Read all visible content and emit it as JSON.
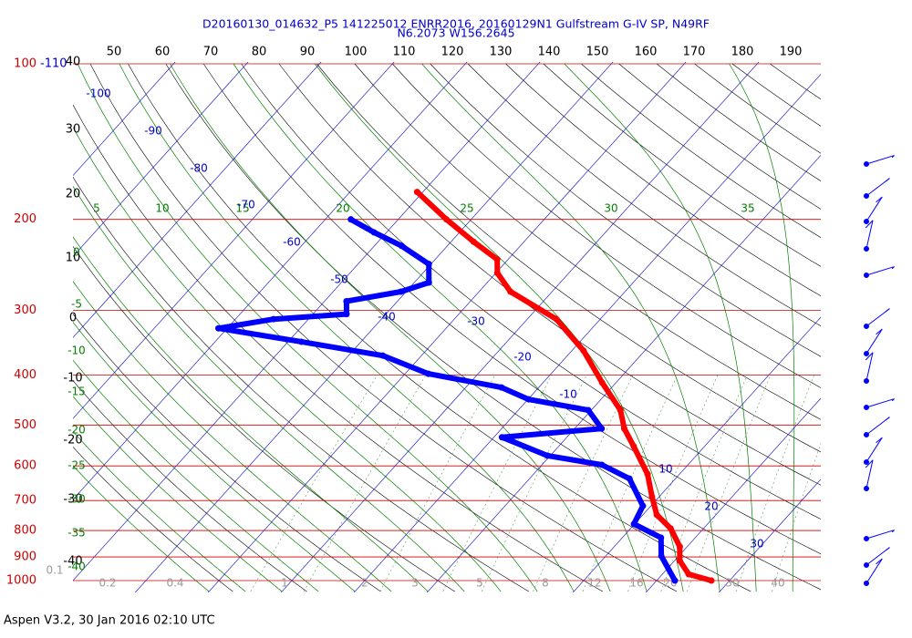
{
  "chart_data": {
    "type": "skew-t",
    "title": "D20160130_014632_P5 141225012 ENRR2016, 20160129N1 Gulfstream G-IV SP, N49RF",
    "subtitle": "N6.2073 W156.2645",
    "footer": "Aspen V3.2, 30 Jan 2016  02:10 UTC",
    "pressure_ticks": [
      100,
      200,
      300,
      400,
      500,
      600,
      700,
      800,
      900,
      1000
    ],
    "top_labels": [
      50,
      60,
      70,
      80,
      90,
      100,
      110,
      120,
      130,
      140,
      150,
      160,
      170,
      180,
      190
    ],
    "dry_labels": [
      40,
      30,
      20,
      10,
      0,
      -10,
      -20,
      -30,
      -40
    ],
    "moist_left_labels": [
      0,
      -5,
      -10,
      -15,
      -20,
      -25,
      -30,
      -35,
      -40
    ],
    "moist_top_labels": [
      5,
      10,
      15,
      20,
      25,
      30,
      35
    ],
    "isotherms": [
      -110,
      -100,
      -90,
      -80,
      -70,
      -60,
      -50,
      -40,
      -30,
      -20,
      -10,
      10,
      20,
      30
    ],
    "mixing_ratio_labels": [
      0.2,
      0.4,
      1,
      2,
      3,
      5,
      8,
      12,
      16,
      20,
      30,
      40
    ],
    "mixing_ratio_min": 0.1,
    "temperature": {
      "color": "#ff0000",
      "pressure": [
        1000,
        972,
        915,
        860,
        793,
        746,
        688,
        622,
        550,
        508,
        468,
        414,
        359,
        312,
        276,
        254,
        239,
        221,
        200,
        177
      ],
      "values": [
        27.5,
        23.6,
        20.7,
        19.0,
        15.5,
        11.9,
        9.0,
        5.6,
        0.3,
        -3.2,
        -6.0,
        -11.9,
        -18.4,
        -26.0,
        -35.7,
        -39.8,
        -41.5,
        -46.9,
        -53.4,
        -60.8
      ]
    },
    "dewpoint": {
      "color": "#0000ff",
      "pressure": [
        1000,
        896,
        826,
        777,
        717,
        635,
        597,
        573,
        528,
        508,
        468,
        446,
        423,
        398,
        367,
        345,
        325,
        312,
        305,
        288,
        276,
        265,
        244,
        225,
        212,
        200
      ],
      "values": [
        22.5,
        17.6,
        15.3,
        9.9,
        8.9,
        3.7,
        -1.8,
        -10.4,
        -18.9,
        -6.3,
        -10.4,
        -19.9,
        -25.1,
        -36.8,
        -45.3,
        -58.2,
        -71.2,
        -64.8,
        -55.4,
        -57.0,
        -50.7,
        -48.0,
        -50.3,
        -56.3,
        -61.7,
        -66.5
      ]
    }
  }
}
